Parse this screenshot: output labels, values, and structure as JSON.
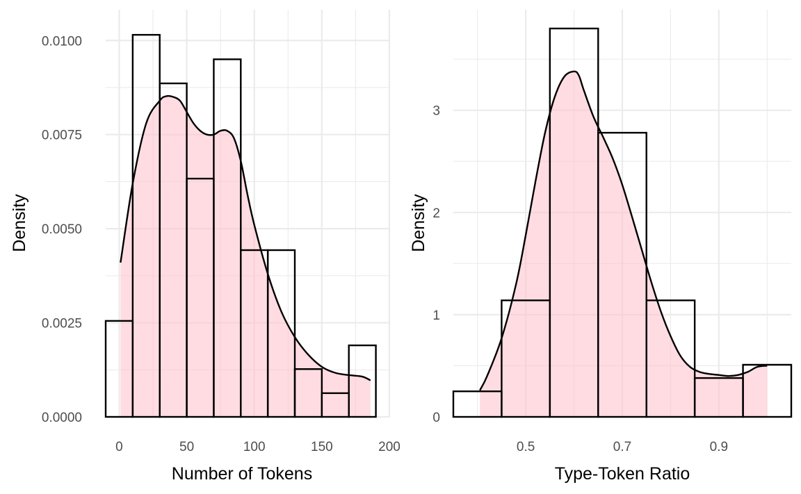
{
  "chart_data": [
    {
      "type": "histogram",
      "xlabel": "Number of Tokens",
      "ylabel": "Density",
      "xlim": [
        -10,
        200
      ],
      "ylim": [
        0,
        0.0103
      ],
      "x_ticks": [
        0,
        50,
        100,
        150,
        200
      ],
      "x_tick_labels": [
        "0",
        "50",
        "100",
        "150",
        "200"
      ],
      "y_ticks": [
        0,
        0.0025,
        0.005,
        0.0075,
        0.01
      ],
      "y_tick_labels": [
        "0.0000",
        "0.0025",
        "0.0050",
        "0.0075",
        "0.0100"
      ],
      "grid": true,
      "bins": [
        {
          "x0": -10,
          "x1": 10,
          "density": 0.00255
        },
        {
          "x0": 10,
          "x1": 30,
          "density": 0.01015
        },
        {
          "x0": 30,
          "x1": 50,
          "density": 0.00886
        },
        {
          "x0": 50,
          "x1": 70,
          "density": 0.00633
        },
        {
          "x0": 70,
          "x1": 90,
          "density": 0.0095
        },
        {
          "x0": 90,
          "x1": 110,
          "density": 0.00443
        },
        {
          "x0": 110,
          "x1": 130,
          "density": 0.00443
        },
        {
          "x0": 130,
          "x1": 150,
          "density": 0.00127
        },
        {
          "x0": 150,
          "x1": 170,
          "density": 0.00063
        },
        {
          "x0": 170,
          "x1": 190,
          "density": 0.0019
        }
      ],
      "density_curve": {
        "x": [
          1,
          10,
          20,
          30,
          35,
          40,
          45,
          50,
          55,
          60,
          65,
          70,
          75,
          80,
          85,
          90,
          95,
          100,
          110,
          120,
          130,
          140,
          150,
          160,
          170,
          180,
          186
        ],
        "y": [
          0.0041,
          0.0062,
          0.0078,
          0.0084,
          0.00852,
          0.0085,
          0.0084,
          0.0081,
          0.0078,
          0.0076,
          0.0075,
          0.0075,
          0.0076,
          0.0076,
          0.0074,
          0.0068,
          0.0059,
          0.0051,
          0.0038,
          0.0028,
          0.00212,
          0.00165,
          0.00133,
          0.00117,
          0.00111,
          0.00107,
          0.00097
        ]
      }
    },
    {
      "type": "histogram",
      "xlabel": "Type-Token Ratio",
      "ylabel": "Density",
      "xlim": [
        0.35,
        1.05
      ],
      "ylim": [
        0,
        3.8
      ],
      "x_ticks": [
        0.5,
        0.7,
        0.9
      ],
      "x_tick_labels": [
        "0.5",
        "0.7",
        "0.9"
      ],
      "y_ticks": [
        0,
        1,
        2,
        3
      ],
      "y_tick_labels": [
        "0",
        "1",
        "2",
        "3"
      ],
      "grid": true,
      "bins": [
        {
          "x0": 0.35,
          "x1": 0.45,
          "density": 0.25
        },
        {
          "x0": 0.45,
          "x1": 0.55,
          "density": 1.14
        },
        {
          "x0": 0.55,
          "x1": 0.65,
          "density": 3.8
        },
        {
          "x0": 0.65,
          "x1": 0.75,
          "density": 2.78
        },
        {
          "x0": 0.75,
          "x1": 0.85,
          "density": 1.14
        },
        {
          "x0": 0.85,
          "x1": 0.95,
          "density": 0.38
        },
        {
          "x0": 0.95,
          "x1": 1.05,
          "density": 0.51
        }
      ],
      "density_curve": {
        "x": [
          0.405,
          0.42,
          0.45,
          0.48,
          0.5,
          0.52,
          0.54,
          0.56,
          0.58,
          0.6,
          0.61,
          0.62,
          0.64,
          0.66,
          0.68,
          0.7,
          0.72,
          0.74,
          0.76,
          0.78,
          0.8,
          0.82,
          0.84,
          0.86,
          0.88,
          0.9,
          0.92,
          0.94,
          0.96,
          0.98,
          1.0
        ],
        "y": [
          0.26,
          0.4,
          0.77,
          1.3,
          1.78,
          2.3,
          2.78,
          3.13,
          3.33,
          3.38,
          3.34,
          3.2,
          2.94,
          2.74,
          2.53,
          2.27,
          1.96,
          1.64,
          1.32,
          1.03,
          0.79,
          0.6,
          0.49,
          0.44,
          0.42,
          0.41,
          0.4,
          0.41,
          0.44,
          0.49,
          0.5
        ]
      }
    }
  ]
}
